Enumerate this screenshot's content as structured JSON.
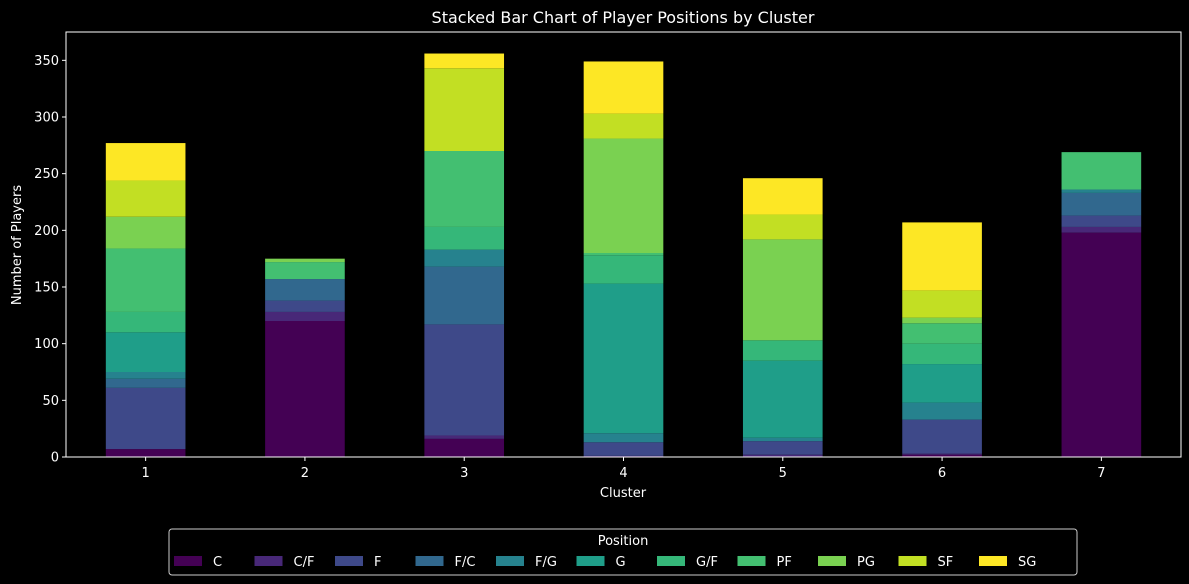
{
  "chart_data": {
    "type": "bar",
    "stacked": true,
    "title": "Stacked Bar Chart of Player Positions by Cluster",
    "xlabel": "Cluster",
    "ylabel": "Number of Players",
    "ylim": [
      0,
      375
    ],
    "yticks": [
      0,
      50,
      100,
      150,
      200,
      250,
      300,
      350
    ],
    "categories": [
      "1",
      "2",
      "3",
      "4",
      "5",
      "6",
      "7"
    ],
    "grid": false,
    "legend": {
      "title": "Position",
      "placement": "bottom-center"
    },
    "series": [
      {
        "name": "C",
        "color": "#440154",
        "values": [
          7,
          120,
          16,
          0,
          0,
          2,
          198
        ]
      },
      {
        "name": "C/F",
        "color": "#482878",
        "values": [
          0,
          8,
          3,
          1,
          2,
          1,
          5
        ]
      },
      {
        "name": "F",
        "color": "#3e4989",
        "values": [
          54,
          10,
          98,
          12,
          12,
          30,
          10
        ]
      },
      {
        "name": "F/C",
        "color": "#31688e",
        "values": [
          8,
          19,
          51,
          0,
          0,
          0,
          20
        ]
      },
      {
        "name": "F/G",
        "color": "#26828e",
        "values": [
          6,
          0,
          15,
          8,
          3,
          15,
          3
        ]
      },
      {
        "name": "G",
        "color": "#1f9e89",
        "values": [
          35,
          0,
          0,
          132,
          68,
          34,
          0
        ]
      },
      {
        "name": "G/F",
        "color": "#35b779",
        "values": [
          18,
          0,
          20,
          25,
          18,
          18,
          0
        ]
      },
      {
        "name": "PF",
        "color": "#43bf71",
        "values": [
          56,
          15,
          67,
          2,
          0,
          18,
          33
        ]
      },
      {
        "name": "PG",
        "color": "#7ad151",
        "values": [
          28,
          3,
          0,
          101,
          89,
          5,
          0
        ]
      },
      {
        "name": "SF",
        "color": "#c2df23",
        "values": [
          32,
          0,
          73,
          22,
          22,
          24,
          0
        ]
      },
      {
        "name": "SG",
        "color": "#fde725",
        "values": [
          33,
          0,
          13,
          46,
          32,
          60,
          0
        ]
      }
    ]
  }
}
